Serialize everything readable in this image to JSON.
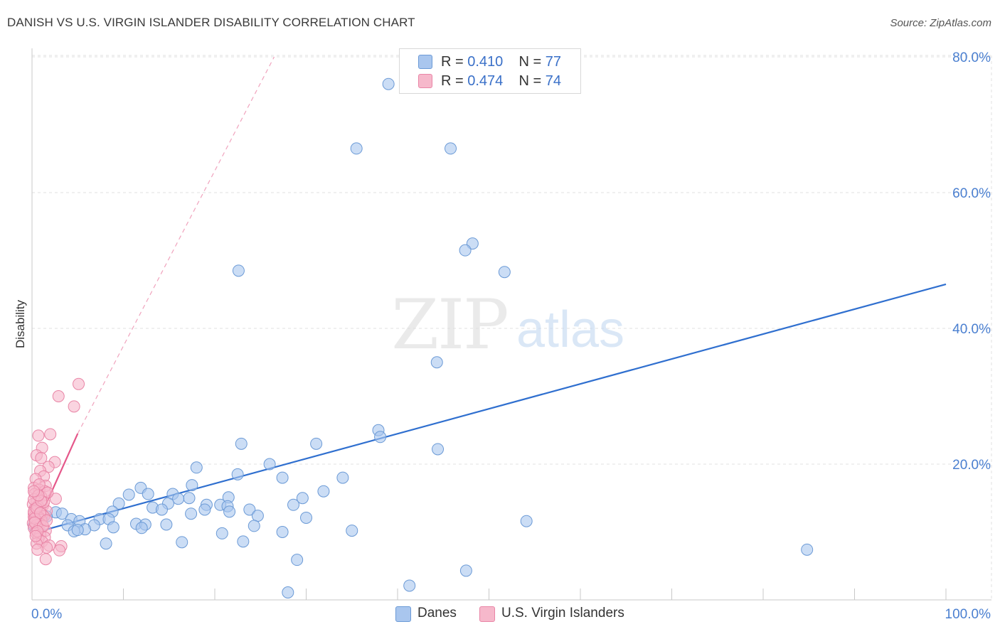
{
  "title": "DANISH VS U.S. VIRGIN ISLANDER DISABILITY CORRELATION CHART",
  "source": "Source: ZipAtlas.com",
  "watermark": {
    "zip": "ZIP",
    "atlas": "atlas"
  },
  "legend_top": [
    {
      "r_label": "R = ",
      "r_value": "0.410",
      "n_label": "N = ",
      "n_value": "77",
      "color": "#a9c6ee"
    },
    {
      "r_label": "R = ",
      "r_value": "0.474",
      "n_label": "N = ",
      "n_value": "74",
      "color": "#f6b8cb"
    }
  ],
  "legend_bottom": [
    {
      "label": "Danes",
      "color": "#a9c6ee"
    },
    {
      "label": "U.S. Virgin Islanders",
      "color": "#f6b8cb"
    }
  ],
  "colors": {
    "blue_point_fill": "#a9c6ee",
    "blue_point_stroke": "#6b9ad6",
    "blue_line": "#2f6fcf",
    "pink_point_fill": "#f6b8cb",
    "pink_point_stroke": "#e985a6",
    "pink_line": "#e5578a",
    "axis_label": "#4a7fd0",
    "grid": "#e2e2e2"
  },
  "chart_data": {
    "type": "scatter",
    "title": "DANISH VS U.S. VIRGIN ISLANDER DISABILITY CORRELATION CHART",
    "xlabel": "",
    "ylabel": "Disability",
    "xlim": [
      0,
      100
    ],
    "ylim": [
      0,
      81
    ],
    "x_tick_labels": [
      {
        "value": 0,
        "label": "0.0%"
      },
      {
        "value": 100,
        "label": "100.0%"
      }
    ],
    "y_tick_labels": [
      {
        "value": 20,
        "label": "20.0%"
      },
      {
        "value": 40,
        "label": "40.0%"
      },
      {
        "value": 60,
        "label": "60.0%"
      },
      {
        "value": 80,
        "label": "80.0%"
      }
    ],
    "grid": true,
    "legend_position": "top-center",
    "series": [
      {
        "name": "Danes",
        "R": 0.41,
        "N": 77,
        "trend": {
          "x": [
            0,
            100
          ],
          "y": [
            9.8,
            46.5
          ],
          "style": "solid"
        },
        "points": [
          [
            39.0,
            76.0
          ],
          [
            35.5,
            66.5
          ],
          [
            45.8,
            66.5
          ],
          [
            48.2,
            52.5
          ],
          [
            47.4,
            51.5
          ],
          [
            22.6,
            48.5
          ],
          [
            51.7,
            48.3
          ],
          [
            44.3,
            35.0
          ],
          [
            37.9,
            25.0
          ],
          [
            38.1,
            24.0
          ],
          [
            22.9,
            23.0
          ],
          [
            31.1,
            23.0
          ],
          [
            44.4,
            22.2
          ],
          [
            26.0,
            20.0
          ],
          [
            18.0,
            19.5
          ],
          [
            22.5,
            18.5
          ],
          [
            34.0,
            18.0
          ],
          [
            27.4,
            18.0
          ],
          [
            17.5,
            16.9
          ],
          [
            11.9,
            16.5
          ],
          [
            31.9,
            16.0
          ],
          [
            12.7,
            15.6
          ],
          [
            15.4,
            15.6
          ],
          [
            10.6,
            15.5
          ],
          [
            29.6,
            15.0
          ],
          [
            17.2,
            15.0
          ],
          [
            21.5,
            15.1
          ],
          [
            16.0,
            14.9
          ],
          [
            9.5,
            14.2
          ],
          [
            14.9,
            14.2
          ],
          [
            20.6,
            14.0
          ],
          [
            19.1,
            14.0
          ],
          [
            28.6,
            14.0
          ],
          [
            13.2,
            13.6
          ],
          [
            21.4,
            13.8
          ],
          [
            14.2,
            13.3
          ],
          [
            18.9,
            13.3
          ],
          [
            23.8,
            13.3
          ],
          [
            8.8,
            13.0
          ],
          [
            21.6,
            13.0
          ],
          [
            24.7,
            12.4
          ],
          [
            2.6,
            12.9
          ],
          [
            3.3,
            12.7
          ],
          [
            0.8,
            12.5
          ],
          [
            1.6,
            12.3
          ],
          [
            4.3,
            11.9
          ],
          [
            7.4,
            11.9
          ],
          [
            8.4,
            11.9
          ],
          [
            30.0,
            12.1
          ],
          [
            5.2,
            11.6
          ],
          [
            11.4,
            11.2
          ],
          [
            12.4,
            11.1
          ],
          [
            14.7,
            11.1
          ],
          [
            24.3,
            10.9
          ],
          [
            3.9,
            11.0
          ],
          [
            6.8,
            11.0
          ],
          [
            0.3,
            11.8
          ],
          [
            1.1,
            12.2
          ],
          [
            0.2,
            10.9
          ],
          [
            8.9,
            10.7
          ],
          [
            12.0,
            10.6
          ],
          [
            5.8,
            10.4
          ],
          [
            4.6,
            10.1
          ],
          [
            5.0,
            10.3
          ],
          [
            17.4,
            12.7
          ],
          [
            27.4,
            10.0
          ],
          [
            35.0,
            10.2
          ],
          [
            20.8,
            9.8
          ],
          [
            54.1,
            11.6
          ],
          [
            8.1,
            8.3
          ],
          [
            16.4,
            8.5
          ],
          [
            23.1,
            8.6
          ],
          [
            84.8,
            7.4
          ],
          [
            29.0,
            5.9
          ],
          [
            47.5,
            4.3
          ],
          [
            41.3,
            2.1
          ],
          [
            28.0,
            1.1
          ]
        ]
      },
      {
        "name": "U.S. Virgin Islanders",
        "R": 0.474,
        "N": 74,
        "trend": {
          "x": [
            0,
            5.0
          ],
          "y": [
            9.5,
            24.5
          ],
          "style": "solid",
          "extended_x": [
            5.0,
            26.5
          ],
          "extended_y": [
            24.5,
            80.0
          ],
          "extended_style": "dashed"
        },
        "points": [
          [
            5.1,
            31.8
          ],
          [
            2.9,
            30.0
          ],
          [
            4.6,
            28.5
          ],
          [
            2.0,
            24.4
          ],
          [
            0.7,
            24.2
          ],
          [
            1.1,
            22.4
          ],
          [
            2.5,
            20.3
          ],
          [
            0.5,
            21.3
          ],
          [
            1.0,
            20.9
          ],
          [
            1.8,
            19.6
          ],
          [
            0.9,
            19.0
          ],
          [
            1.3,
            18.2
          ],
          [
            0.4,
            17.8
          ],
          [
            1.5,
            16.8
          ],
          [
            0.2,
            16.5
          ],
          [
            0.8,
            16.2
          ],
          [
            1.4,
            16.0
          ],
          [
            0.3,
            15.6
          ],
          [
            1.0,
            15.2
          ],
          [
            2.6,
            14.9
          ],
          [
            0.5,
            14.5
          ],
          [
            0.1,
            14.1
          ],
          [
            1.2,
            13.9
          ],
          [
            0.7,
            13.7
          ],
          [
            0.3,
            13.4
          ],
          [
            0.9,
            13.3
          ],
          [
            1.6,
            13.1
          ],
          [
            0.4,
            12.9
          ],
          [
            0.2,
            12.7
          ],
          [
            1.1,
            12.6
          ],
          [
            0.6,
            12.4
          ],
          [
            1.3,
            12.3
          ],
          [
            0.2,
            12.2
          ],
          [
            0.8,
            12.1
          ],
          [
            0.4,
            11.9
          ],
          [
            1.0,
            11.8
          ],
          [
            0.3,
            11.6
          ],
          [
            0.6,
            11.5
          ],
          [
            0.1,
            11.3
          ],
          [
            0.9,
            11.2
          ],
          [
            0.5,
            11.0
          ],
          [
            1.2,
            10.8
          ],
          [
            0.2,
            10.6
          ],
          [
            0.7,
            10.4
          ],
          [
            1.5,
            10.2
          ],
          [
            0.4,
            9.9
          ],
          [
            0.9,
            9.6
          ],
          [
            0.2,
            13.0
          ],
          [
            0.6,
            13.8
          ],
          [
            0.3,
            12.0
          ],
          [
            1.4,
            9.2
          ],
          [
            0.7,
            9.0
          ],
          [
            1.1,
            8.6
          ],
          [
            0.5,
            8.3
          ],
          [
            1.9,
            8.0
          ],
          [
            3.2,
            7.9
          ],
          [
            1.6,
            7.7
          ],
          [
            0.6,
            7.4
          ],
          [
            3.0,
            7.3
          ],
          [
            1.5,
            6.0
          ],
          [
            0.8,
            17.0
          ],
          [
            1.7,
            15.8
          ],
          [
            0.2,
            14.8
          ],
          [
            1.3,
            14.4
          ],
          [
            0.5,
            13.5
          ],
          [
            0.9,
            12.8
          ],
          [
            0.3,
            11.4
          ],
          [
            1.2,
            10.9
          ],
          [
            0.6,
            10.1
          ],
          [
            0.4,
            9.4
          ],
          [
            1.0,
            14.6
          ],
          [
            0.7,
            15.4
          ],
          [
            0.2,
            16.0
          ],
          [
            1.6,
            11.7
          ]
        ]
      }
    ]
  }
}
